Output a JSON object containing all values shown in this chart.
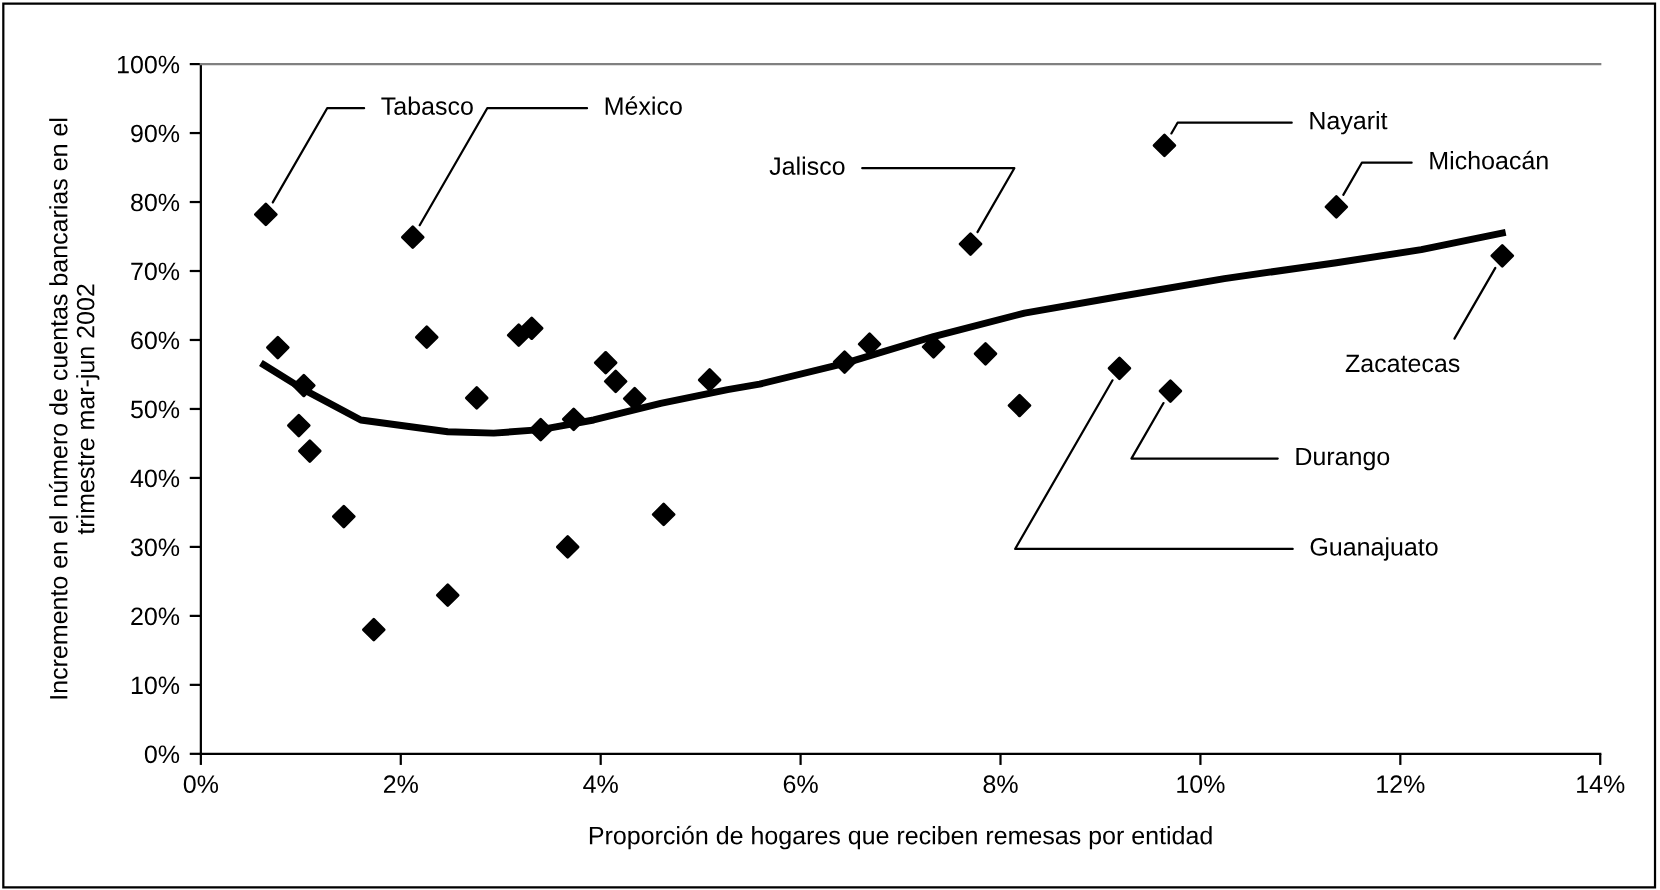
{
  "chart_data": {
    "type": "scatter",
    "xlabel": "Proporción de hogares que reciben remesas por entidad",
    "ylabel": "Incremento en el número de cuentas bancarias en el\ntrimestre mar-jun 2002",
    "xlim": [
      0,
      14
    ],
    "xticks": [
      {
        "value": 0,
        "label": "0%"
      },
      {
        "value": 2,
        "label": "2%"
      },
      {
        "value": 4,
        "label": "4%"
      },
      {
        "value": 6,
        "label": "6%"
      },
      {
        "value": 8,
        "label": "8%"
      },
      {
        "value": 10,
        "label": "10%"
      },
      {
        "value": 12,
        "label": "12%"
      },
      {
        "value": 14,
        "label": "14%"
      }
    ],
    "ylim": [
      0,
      100
    ],
    "yticks": [
      {
        "value": 0,
        "label": "0%"
      },
      {
        "value": 10,
        "label": "10%"
      },
      {
        "value": 20,
        "label": "20%"
      },
      {
        "value": 30,
        "label": "30%"
      },
      {
        "value": 40,
        "label": "40%"
      },
      {
        "value": 50,
        "label": "50%"
      },
      {
        "value": 60,
        "label": "60%"
      },
      {
        "value": 70,
        "label": "70%"
      },
      {
        "value": 80,
        "label": "80%"
      },
      {
        "value": 90,
        "label": "90%"
      },
      {
        "value": 100,
        "label": "100%"
      }
    ],
    "grid": false,
    "legend": false,
    "series": [
      {
        "type": "scatter",
        "color": "#000000",
        "marker": "diamond",
        "x": [
          0.65,
          0.77,
          1.03,
          0.98,
          1.09,
          1.43,
          1.73,
          2.12,
          2.26,
          2.47,
          2.76,
          3.18,
          3.31,
          3.4,
          3.67,
          3.73,
          4.05,
          4.15,
          4.34,
          4.63,
          5.09,
          6.44,
          6.69,
          7.33,
          7.7,
          7.85,
          8.19,
          9.19,
          9.64,
          9.7,
          11.36,
          13.02
        ],
        "values": [
          78.2,
          58.9,
          53.4,
          47.6,
          43.9,
          34.4,
          18.0,
          74.9,
          60.4,
          23.0,
          51.6,
          60.7,
          61.7,
          47.0,
          30.0,
          48.5,
          56.7,
          54.0,
          51.5,
          34.7,
          54.2,
          56.8,
          59.4,
          59.0,
          73.9,
          58.0,
          50.5,
          55.9,
          88.2,
          52.6,
          79.3,
          72.2
        ]
      },
      {
        "type": "line",
        "color": "#000000",
        "marker": "none",
        "line_style": "solid",
        "x": [
          0.63,
          1.03,
          1.6,
          2.47,
          2.93,
          3.4,
          3.93,
          4.6,
          5.27,
          5.59,
          6.44,
          7.33,
          8.24,
          9.19,
          10.24,
          11.36,
          12.21,
          13.02
        ],
        "values": [
          56.4,
          52.8,
          48.4,
          46.7,
          46.5,
          47.0,
          48.4,
          50.8,
          52.8,
          53.6,
          56.6,
          60.5,
          63.9,
          66.3,
          68.9,
          71.2,
          73.1,
          75.5
        ]
      }
    ],
    "annotations": [
      {
        "text": "Tabasco",
        "x": 0.65,
        "y": 78.2
      },
      {
        "text": "México",
        "x": 2.12,
        "y": 74.9
      },
      {
        "text": "Jalisco",
        "x": 7.7,
        "y": 73.9
      },
      {
        "text": "Nayarit",
        "x": 9.64,
        "y": 88.2
      },
      {
        "text": "Michoacán",
        "x": 11.36,
        "y": 79.3
      },
      {
        "text": "Zacatecas",
        "x": 13.02,
        "y": 72.2
      },
      {
        "text": "Durango",
        "x": 9.7,
        "y": 52.6
      },
      {
        "text": "Guanajuato",
        "x": 9.19,
        "y": 55.9
      }
    ]
  }
}
